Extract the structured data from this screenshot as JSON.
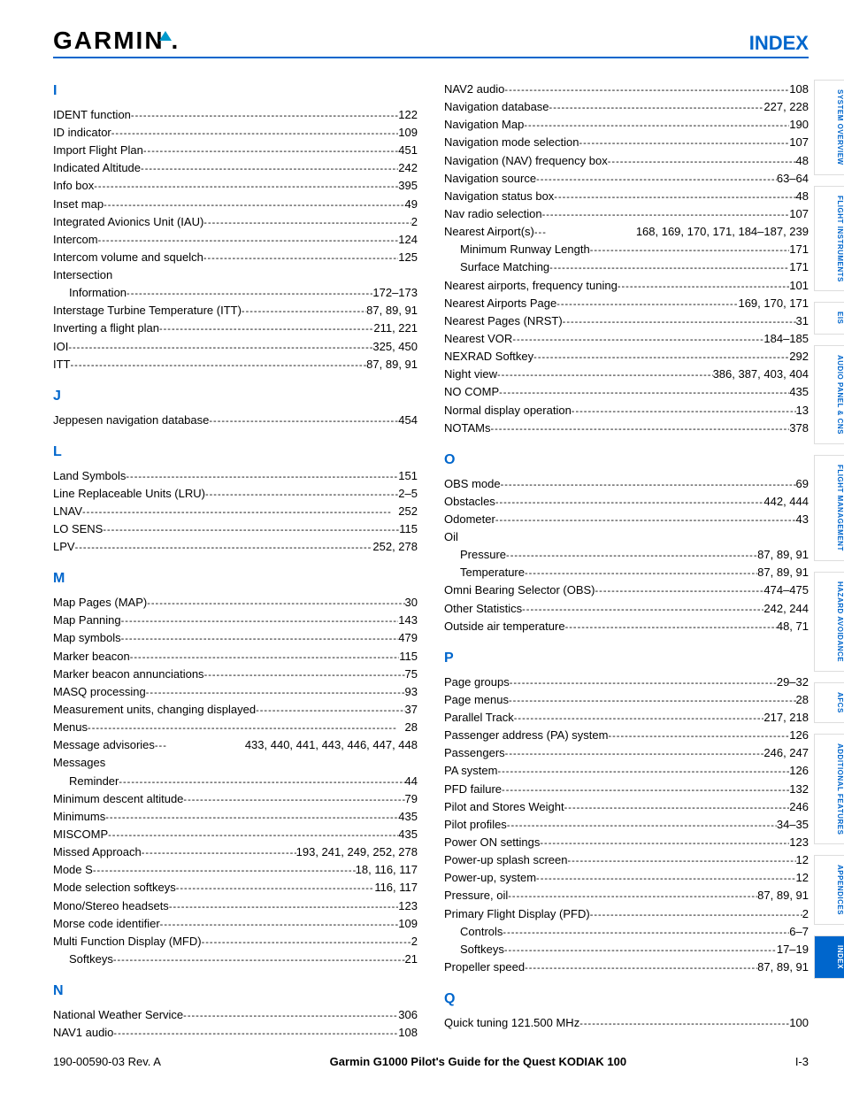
{
  "logo_text": "GARMIN",
  "header_title": "INDEX",
  "footer": {
    "left": "190-00590-03  Rev. A",
    "center": "Garmin G1000 Pilot's Guide for the Quest KODIAK 100",
    "right": "I-3"
  },
  "tabs": [
    {
      "label": "SYSTEM OVERVIEW",
      "active": false
    },
    {
      "label": "FLIGHT INSTRUMENTS",
      "active": false
    },
    {
      "label": "EIS",
      "active": false
    },
    {
      "label": "AUDIO PANEL & CNS",
      "active": false
    },
    {
      "label": "FLIGHT MANAGEMENT",
      "active": false
    },
    {
      "label": "HAZARD AVOIDANCE",
      "active": false
    },
    {
      "label": "AFCS",
      "active": false
    },
    {
      "label": "ADDITIONAL FEATURES",
      "active": false
    },
    {
      "label": "APPENDICES",
      "active": false
    },
    {
      "label": "INDEX",
      "active": true
    }
  ],
  "col1": [
    {
      "type": "letter",
      "text": "I",
      "first": true
    },
    {
      "type": "e",
      "t": "IDENT function",
      "p": "122"
    },
    {
      "type": "e",
      "t": "ID indicator",
      "p": "109"
    },
    {
      "type": "e",
      "t": "Import Flight Plan",
      "p": "451"
    },
    {
      "type": "e",
      "t": "Indicated Altitude",
      "p": "242"
    },
    {
      "type": "e",
      "t": "Info box",
      "p": "395"
    },
    {
      "type": "e",
      "t": "Inset map",
      "p": "49"
    },
    {
      "type": "e",
      "t": "Integrated Avionics Unit (IAU)",
      "p": "2"
    },
    {
      "type": "e",
      "t": "Intercom",
      "p": "124"
    },
    {
      "type": "e",
      "t": "Intercom volume and squelch",
      "p": "125"
    },
    {
      "type": "h",
      "t": "Intersection"
    },
    {
      "type": "s",
      "t": "Information",
      "p": "172–173"
    },
    {
      "type": "e",
      "t": "Interstage Turbine Temperature (ITT)",
      "p": "87, 89, 91"
    },
    {
      "type": "e",
      "t": "Inverting a flight plan",
      "p": "211, 221"
    },
    {
      "type": "e",
      "t": "IOI",
      "p": "325, 450"
    },
    {
      "type": "e",
      "t": "ITT",
      "p": "87, 89, 91"
    },
    {
      "type": "letter",
      "text": "J"
    },
    {
      "type": "e",
      "t": "Jeppesen navigation database",
      "p": "454"
    },
    {
      "type": "letter",
      "text": "L"
    },
    {
      "type": "e",
      "t": "Land Symbols",
      "p": "151"
    },
    {
      "type": "e",
      "t": "Line Replaceable Units (LRU)",
      "p": "2–5"
    },
    {
      "type": "e",
      "t": "LNAV",
      "p": "252"
    },
    {
      "type": "e",
      "t": "LO SENS",
      "p": "115"
    },
    {
      "type": "e",
      "t": "LPV",
      "p": "252, 278"
    },
    {
      "type": "letter",
      "text": "M"
    },
    {
      "type": "e",
      "t": "Map Pages (MAP)",
      "p": "30"
    },
    {
      "type": "e",
      "t": "Map Panning",
      "p": "143"
    },
    {
      "type": "e",
      "t": "Map symbols",
      "p": "479"
    },
    {
      "type": "e",
      "t": "Marker beacon",
      "p": "115"
    },
    {
      "type": "e",
      "t": "Marker beacon annunciations",
      "p": "75"
    },
    {
      "type": "e",
      "t": "MASQ processing",
      "p": "93"
    },
    {
      "type": "e",
      "t": "Measurement units, changing displayed",
      "p": "37"
    },
    {
      "type": "e",
      "t": "Menus",
      "p": "28"
    },
    {
      "type": "e",
      "t": "Message advisories",
      "p": "433, 440, 441, 443, 446, 447, 448",
      "ng": true
    },
    {
      "type": "h",
      "t": "Messages"
    },
    {
      "type": "s",
      "t": "Reminder",
      "p": "44"
    },
    {
      "type": "e",
      "t": "Minimum descent altitude",
      "p": "79"
    },
    {
      "type": "e",
      "t": "Minimums",
      "p": "435"
    },
    {
      "type": "e",
      "t": "MISCOMP",
      "p": "435"
    },
    {
      "type": "e",
      "t": "Missed Approach",
      "p": "193, 241, 249, 252, 278"
    },
    {
      "type": "e",
      "t": "Mode S",
      "p": "18, 116, 117"
    },
    {
      "type": "e",
      "t": "Mode selection softkeys",
      "p": "116, 117"
    },
    {
      "type": "e",
      "t": "Mono/Stereo headsets",
      "p": "123"
    },
    {
      "type": "e",
      "t": "Morse code identifier",
      "p": "109"
    },
    {
      "type": "e",
      "t": "Multi Function Display (MFD)",
      "p": "2"
    },
    {
      "type": "s",
      "t": "Softkeys",
      "p": "21"
    },
    {
      "type": "letter",
      "text": "N"
    },
    {
      "type": "e",
      "t": "National Weather Service",
      "p": "306"
    },
    {
      "type": "e",
      "t": "NAV1 audio",
      "p": "108"
    }
  ],
  "col2": [
    {
      "type": "e",
      "t": "NAV2 audio",
      "p": "108"
    },
    {
      "type": "e",
      "t": "Navigation database",
      "p": "227, 228"
    },
    {
      "type": "e",
      "t": "Navigation Map",
      "p": "190"
    },
    {
      "type": "e",
      "t": "Navigation mode selection",
      "p": "107"
    },
    {
      "type": "e",
      "t": "Navigation (NAV) frequency box",
      "p": "48"
    },
    {
      "type": "e",
      "t": "Navigation source",
      "p": "63–64"
    },
    {
      "type": "e",
      "t": "Navigation status box",
      "p": "48"
    },
    {
      "type": "e",
      "t": "Nav radio selection",
      "p": "107"
    },
    {
      "type": "e",
      "t": "Nearest Airport(s)",
      "p": "168, 169, 170, 171, 184–187, 239",
      "ng": true
    },
    {
      "type": "s",
      "t": "Minimum Runway Length",
      "p": "171"
    },
    {
      "type": "s",
      "t": "Surface Matching",
      "p": "171"
    },
    {
      "type": "e",
      "t": "Nearest airports, frequency tuning",
      "p": "101"
    },
    {
      "type": "e",
      "t": "Nearest Airports Page",
      "p": "169, 170, 171"
    },
    {
      "type": "e",
      "t": "Nearest Pages (NRST)",
      "p": "31"
    },
    {
      "type": "e",
      "t": "Nearest VOR",
      "p": "184–185"
    },
    {
      "type": "e",
      "t": "NEXRAD Softkey",
      "p": "292"
    },
    {
      "type": "e",
      "t": "Night view",
      "p": "386, 387, 403, 404"
    },
    {
      "type": "e",
      "t": "NO COMP",
      "p": "435"
    },
    {
      "type": "e",
      "t": "Normal display operation",
      "p": "13"
    },
    {
      "type": "e",
      "t": "NOTAMs",
      "p": "378"
    },
    {
      "type": "letter",
      "text": "O"
    },
    {
      "type": "e",
      "t": "OBS mode",
      "p": "69"
    },
    {
      "type": "e",
      "t": "Obstacles",
      "p": "442, 444"
    },
    {
      "type": "e",
      "t": "Odometer",
      "p": "43"
    },
    {
      "type": "h",
      "t": "Oil"
    },
    {
      "type": "s",
      "t": "Pressure",
      "p": "87, 89, 91"
    },
    {
      "type": "s",
      "t": "Temperature",
      "p": "87, 89, 91"
    },
    {
      "type": "e",
      "t": "Omni Bearing Selector (OBS)",
      "p": "474–475"
    },
    {
      "type": "e",
      "t": "Other Statistics",
      "p": "242, 244"
    },
    {
      "type": "e",
      "t": "Outside air temperature",
      "p": "48, 71"
    },
    {
      "type": "letter",
      "text": "P"
    },
    {
      "type": "e",
      "t": "Page groups",
      "p": "29–32"
    },
    {
      "type": "e",
      "t": "Page menus",
      "p": "28"
    },
    {
      "type": "e",
      "t": "Parallel Track",
      "p": "217, 218"
    },
    {
      "type": "e",
      "t": "Passenger address (PA) system",
      "p": "126"
    },
    {
      "type": "e",
      "t": "Passengers",
      "p": "246, 247"
    },
    {
      "type": "e",
      "t": "PA system",
      "p": "126"
    },
    {
      "type": "e",
      "t": "PFD failure",
      "p": "132"
    },
    {
      "type": "e",
      "t": "Pilot and Stores Weight",
      "p": "246"
    },
    {
      "type": "e",
      "t": "Pilot profiles",
      "p": "34–35"
    },
    {
      "type": "e",
      "t": "Power ON settings",
      "p": "123"
    },
    {
      "type": "e",
      "t": "Power-up splash screen",
      "p": "12"
    },
    {
      "type": "e",
      "t": "Power-up, system",
      "p": "12"
    },
    {
      "type": "e",
      "t": "Pressure, oil",
      "p": "87, 89, 91"
    },
    {
      "type": "e",
      "t": "Primary Flight Display (PFD)",
      "p": "2"
    },
    {
      "type": "s",
      "t": "Controls",
      "p": "6–7"
    },
    {
      "type": "s",
      "t": "Softkeys",
      "p": "17–19"
    },
    {
      "type": "e",
      "t": "Propeller speed",
      "p": "87, 89, 91"
    },
    {
      "type": "letter",
      "text": "Q"
    },
    {
      "type": "e",
      "t": "Quick tuning 121.500 MHz",
      "p": "100"
    }
  ]
}
